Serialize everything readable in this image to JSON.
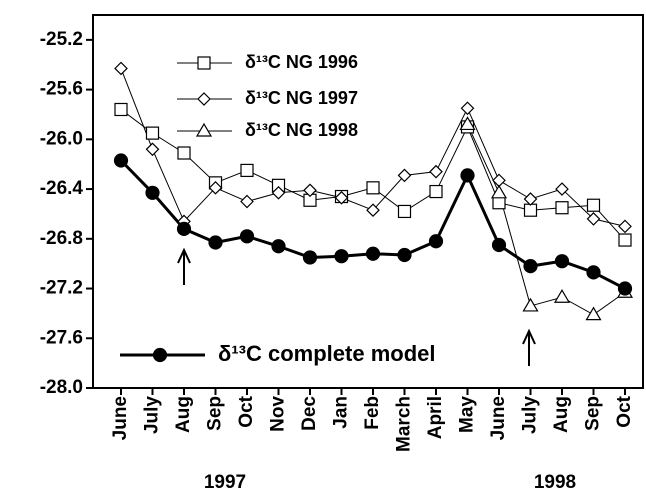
{
  "chart_data": {
    "type": "line",
    "categories": [
      "June",
      "July",
      "Aug",
      "Sep",
      "Oct",
      "Nov",
      "Dec",
      "Jan",
      "Feb",
      "March",
      "April",
      "May",
      "June",
      "July",
      "Aug",
      "Sep",
      "Oct"
    ],
    "year_labels": [
      "1997",
      "1998"
    ],
    "ylim": [
      -28.0,
      -25.0
    ],
    "yticks": [
      -25.2,
      -25.6,
      {
        "value": -26,
        "label": "-26.0"
      },
      -26.4,
      -26.8,
      -27.2,
      -27.6,
      {
        "value": -28,
        "label": "-28.0"
      }
    ],
    "series": [
      {
        "name": "δ¹³C NG 1996",
        "color": "#000000",
        "marker": "square",
        "line_width": 1,
        "values": [
          -25.76,
          -25.95,
          -26.11,
          -26.35,
          -26.25,
          -26.37,
          -26.49,
          -26.46,
          -26.39,
          -26.58,
          -26.42,
          -25.9,
          -26.51,
          -26.57,
          -26.55,
          -26.53,
          -26.81
        ]
      },
      {
        "name": "δ¹³C NG 1997",
        "color": "#000000",
        "marker": "diamond",
        "line_width": 1,
        "values": [
          -25.43,
          -26.08,
          -26.66,
          -26.39,
          -26.5,
          -26.43,
          -26.41,
          -26.47,
          -26.57,
          -26.29,
          -26.26,
          -25.75,
          -26.33,
          -26.48,
          -26.4,
          -26.64,
          -26.7
        ]
      },
      {
        "name": "δ¹³C NG 1998",
        "color": "#000000",
        "marker": "triangle",
        "line_width": 1,
        "values": [
          null,
          null,
          null,
          null,
          null,
          null,
          null,
          null,
          null,
          null,
          null,
          -25.88,
          -26.43,
          -27.34,
          -27.27,
          -27.41,
          -27.23
        ]
      },
      {
        "name": "δ¹³C complete model",
        "color": "#000000",
        "marker": "circle",
        "line_width": 3,
        "values": [
          -26.17,
          -26.43,
          -26.72,
          -26.83,
          -26.78,
          -26.86,
          -26.95,
          -26.94,
          -26.92,
          -26.93,
          -26.82,
          -26.29,
          -26.85,
          -27.02,
          -26.98,
          -27.07,
          -27.2
        ]
      }
    ]
  }
}
